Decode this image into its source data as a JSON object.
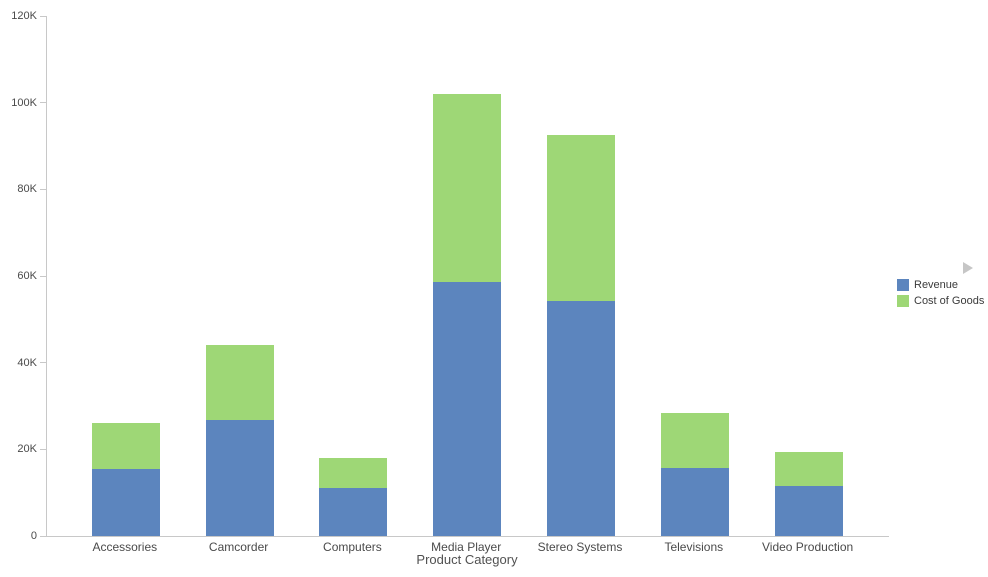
{
  "chart_data": {
    "type": "bar",
    "stacked": true,
    "categories": [
      "Accessories",
      "Camcorder",
      "Computers",
      "Media Player",
      "Stereo Systems",
      "Televisions",
      "Video Production"
    ],
    "series": [
      {
        "name": "Revenue",
        "color": "#5C85BE",
        "values": [
          15500,
          26800,
          11000,
          58700,
          54300,
          15700,
          11500
        ]
      },
      {
        "name": "Cost of Goods",
        "color": "#9ED776",
        "values": [
          10500,
          17300,
          7100,
          43400,
          38200,
          12600,
          7800
        ]
      }
    ],
    "xlabel": "Product Category",
    "ylim": [
      0,
      120000
    ],
    "yticks": [
      {
        "value": 0,
        "label": "0"
      },
      {
        "value": 20000,
        "label": "20K"
      },
      {
        "value": 40000,
        "label": "40K"
      },
      {
        "value": 60000,
        "label": "60K"
      },
      {
        "value": 80000,
        "label": "80K"
      },
      {
        "value": 100000,
        "label": "100K"
      },
      {
        "value": 120000,
        "label": "120K"
      }
    ],
    "grid": false,
    "legend_position": "right",
    "axis_color": "#C8C8C8"
  },
  "icons": {
    "legend_arrow": "right-triangle"
  }
}
